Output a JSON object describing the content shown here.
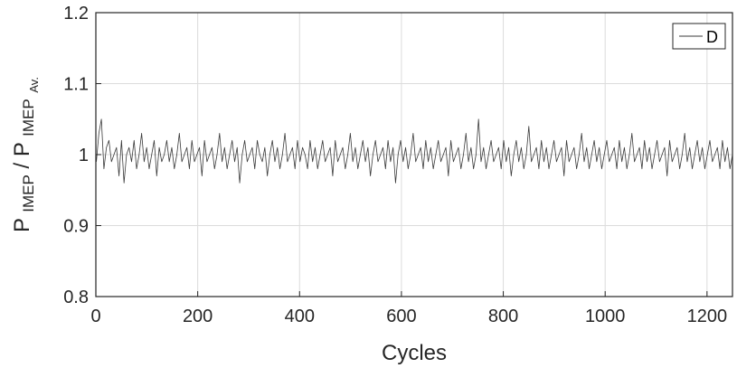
{
  "chart_data": {
    "type": "line",
    "title": "",
    "xlabel": "Cycles",
    "ylabel": {
      "base1": "P",
      "sub1": "IMEP",
      "slash": "/",
      "base2": "P",
      "sub2": "IMEP",
      "sub3": "Av."
    },
    "xlim": [
      0,
      1250
    ],
    "ylim": [
      0.8,
      1.2
    ],
    "xticks": [
      "0",
      "200",
      "400",
      "600",
      "800",
      "1000",
      "1200"
    ],
    "yticks": [
      "0.8",
      "0.9",
      "1",
      "1.1",
      "1.2"
    ],
    "grid": true,
    "legend_position": "top-right",
    "series": [
      {
        "name": "D",
        "color": "#3a3a3a",
        "x_start": 1,
        "x_end": 1250,
        "mean": 1.0,
        "range": [
          0.955,
          1.05
        ],
        "values": [
          0.99,
          1.03,
          1.05,
          0.98,
          1.01,
          1.02,
          0.99,
          1.0,
          1.01,
          0.97,
          1.02,
          0.96,
          1.0,
          1.01,
          0.99,
          1.02,
          0.98,
          1.0,
          1.03,
          0.99,
          1.01,
          0.98,
          1.0,
          1.02,
          0.97,
          1.01,
          0.99,
          1.0,
          1.02,
          0.99,
          1.01,
          0.98,
          1.0,
          1.03,
          0.99,
          1.0,
          1.01,
          0.98,
          1.02,
          0.99,
          1.0,
          1.01,
          0.97,
          1.02,
          0.99,
          1.0,
          1.01,
          0.98,
          1.0,
          1.03,
          0.99,
          1.01,
          0.98,
          1.0,
          1.02,
          0.99,
          1.01,
          0.96,
          1.0,
          1.02,
          0.99,
          1.0,
          1.01,
          0.98,
          1.02,
          1.0,
          0.99,
          1.01,
          0.97,
          1.0,
          1.02,
          0.99,
          1.01,
          0.98,
          1.0,
          1.03,
          0.99,
          1.0,
          1.01,
          0.98,
          1.02,
          0.99,
          1.01,
          1.0,
          0.98,
          1.02,
          0.99,
          1.01,
          0.98,
          1.0,
          1.02,
          0.99,
          1.0,
          1.01,
          0.97,
          1.02,
          0.99,
          1.0,
          1.01,
          0.98,
          1.0,
          1.03,
          0.99,
          1.01,
          0.98,
          1.0,
          1.02,
          0.99,
          1.01,
          0.97,
          1.0,
          1.02,
          0.99,
          1.0,
          1.01,
          0.98,
          1.02,
          0.99,
          1.01,
          0.96,
          1.0,
          1.02,
          0.99,
          1.01,
          0.98,
          1.0,
          1.03,
          0.99,
          1.0,
          1.01,
          0.98,
          1.02,
          0.99,
          1.01,
          0.98,
          1.0,
          1.02,
          0.99,
          1.0,
          1.01,
          0.97,
          1.02,
          0.99,
          1.0,
          1.01,
          0.98,
          1.0,
          1.03,
          0.99,
          1.01,
          0.98,
          1.0,
          1.05,
          0.99,
          1.01,
          0.98,
          1.0,
          1.02,
          0.99,
          1.0,
          1.01,
          0.98,
          1.02,
          0.99,
          1.01,
          0.97,
          1.0,
          1.02,
          0.99,
          1.01,
          0.98,
          1.0,
          1.04,
          0.99,
          1.0,
          1.01,
          0.98,
          1.02,
          0.99,
          1.01,
          0.98,
          1.0,
          1.02,
          0.99,
          1.0,
          1.01,
          0.97,
          1.02,
          0.99,
          1.0,
          1.01,
          0.98,
          1.0,
          1.03,
          0.99,
          1.01,
          0.98,
          1.0,
          1.02,
          0.99,
          1.01,
          0.98,
          1.0,
          1.02,
          0.99,
          1.0,
          1.01,
          0.98,
          1.02,
          0.99,
          1.01,
          0.98,
          1.0,
          1.03,
          0.99,
          1.0,
          1.01,
          0.98,
          1.02,
          0.99,
          1.01,
          0.98,
          1.0,
          1.02,
          0.99,
          1.0,
          1.01,
          0.97,
          1.02,
          0.99,
          1.0,
          1.01,
          0.98,
          1.0,
          1.03,
          0.99,
          1.01,
          0.98,
          1.0,
          1.02,
          0.99,
          1.01,
          0.98,
          1.0,
          1.02,
          0.99,
          1.0,
          1.01,
          0.98,
          1.02,
          0.99,
          1.01,
          0.98,
          1.0
        ]
      }
    ]
  }
}
